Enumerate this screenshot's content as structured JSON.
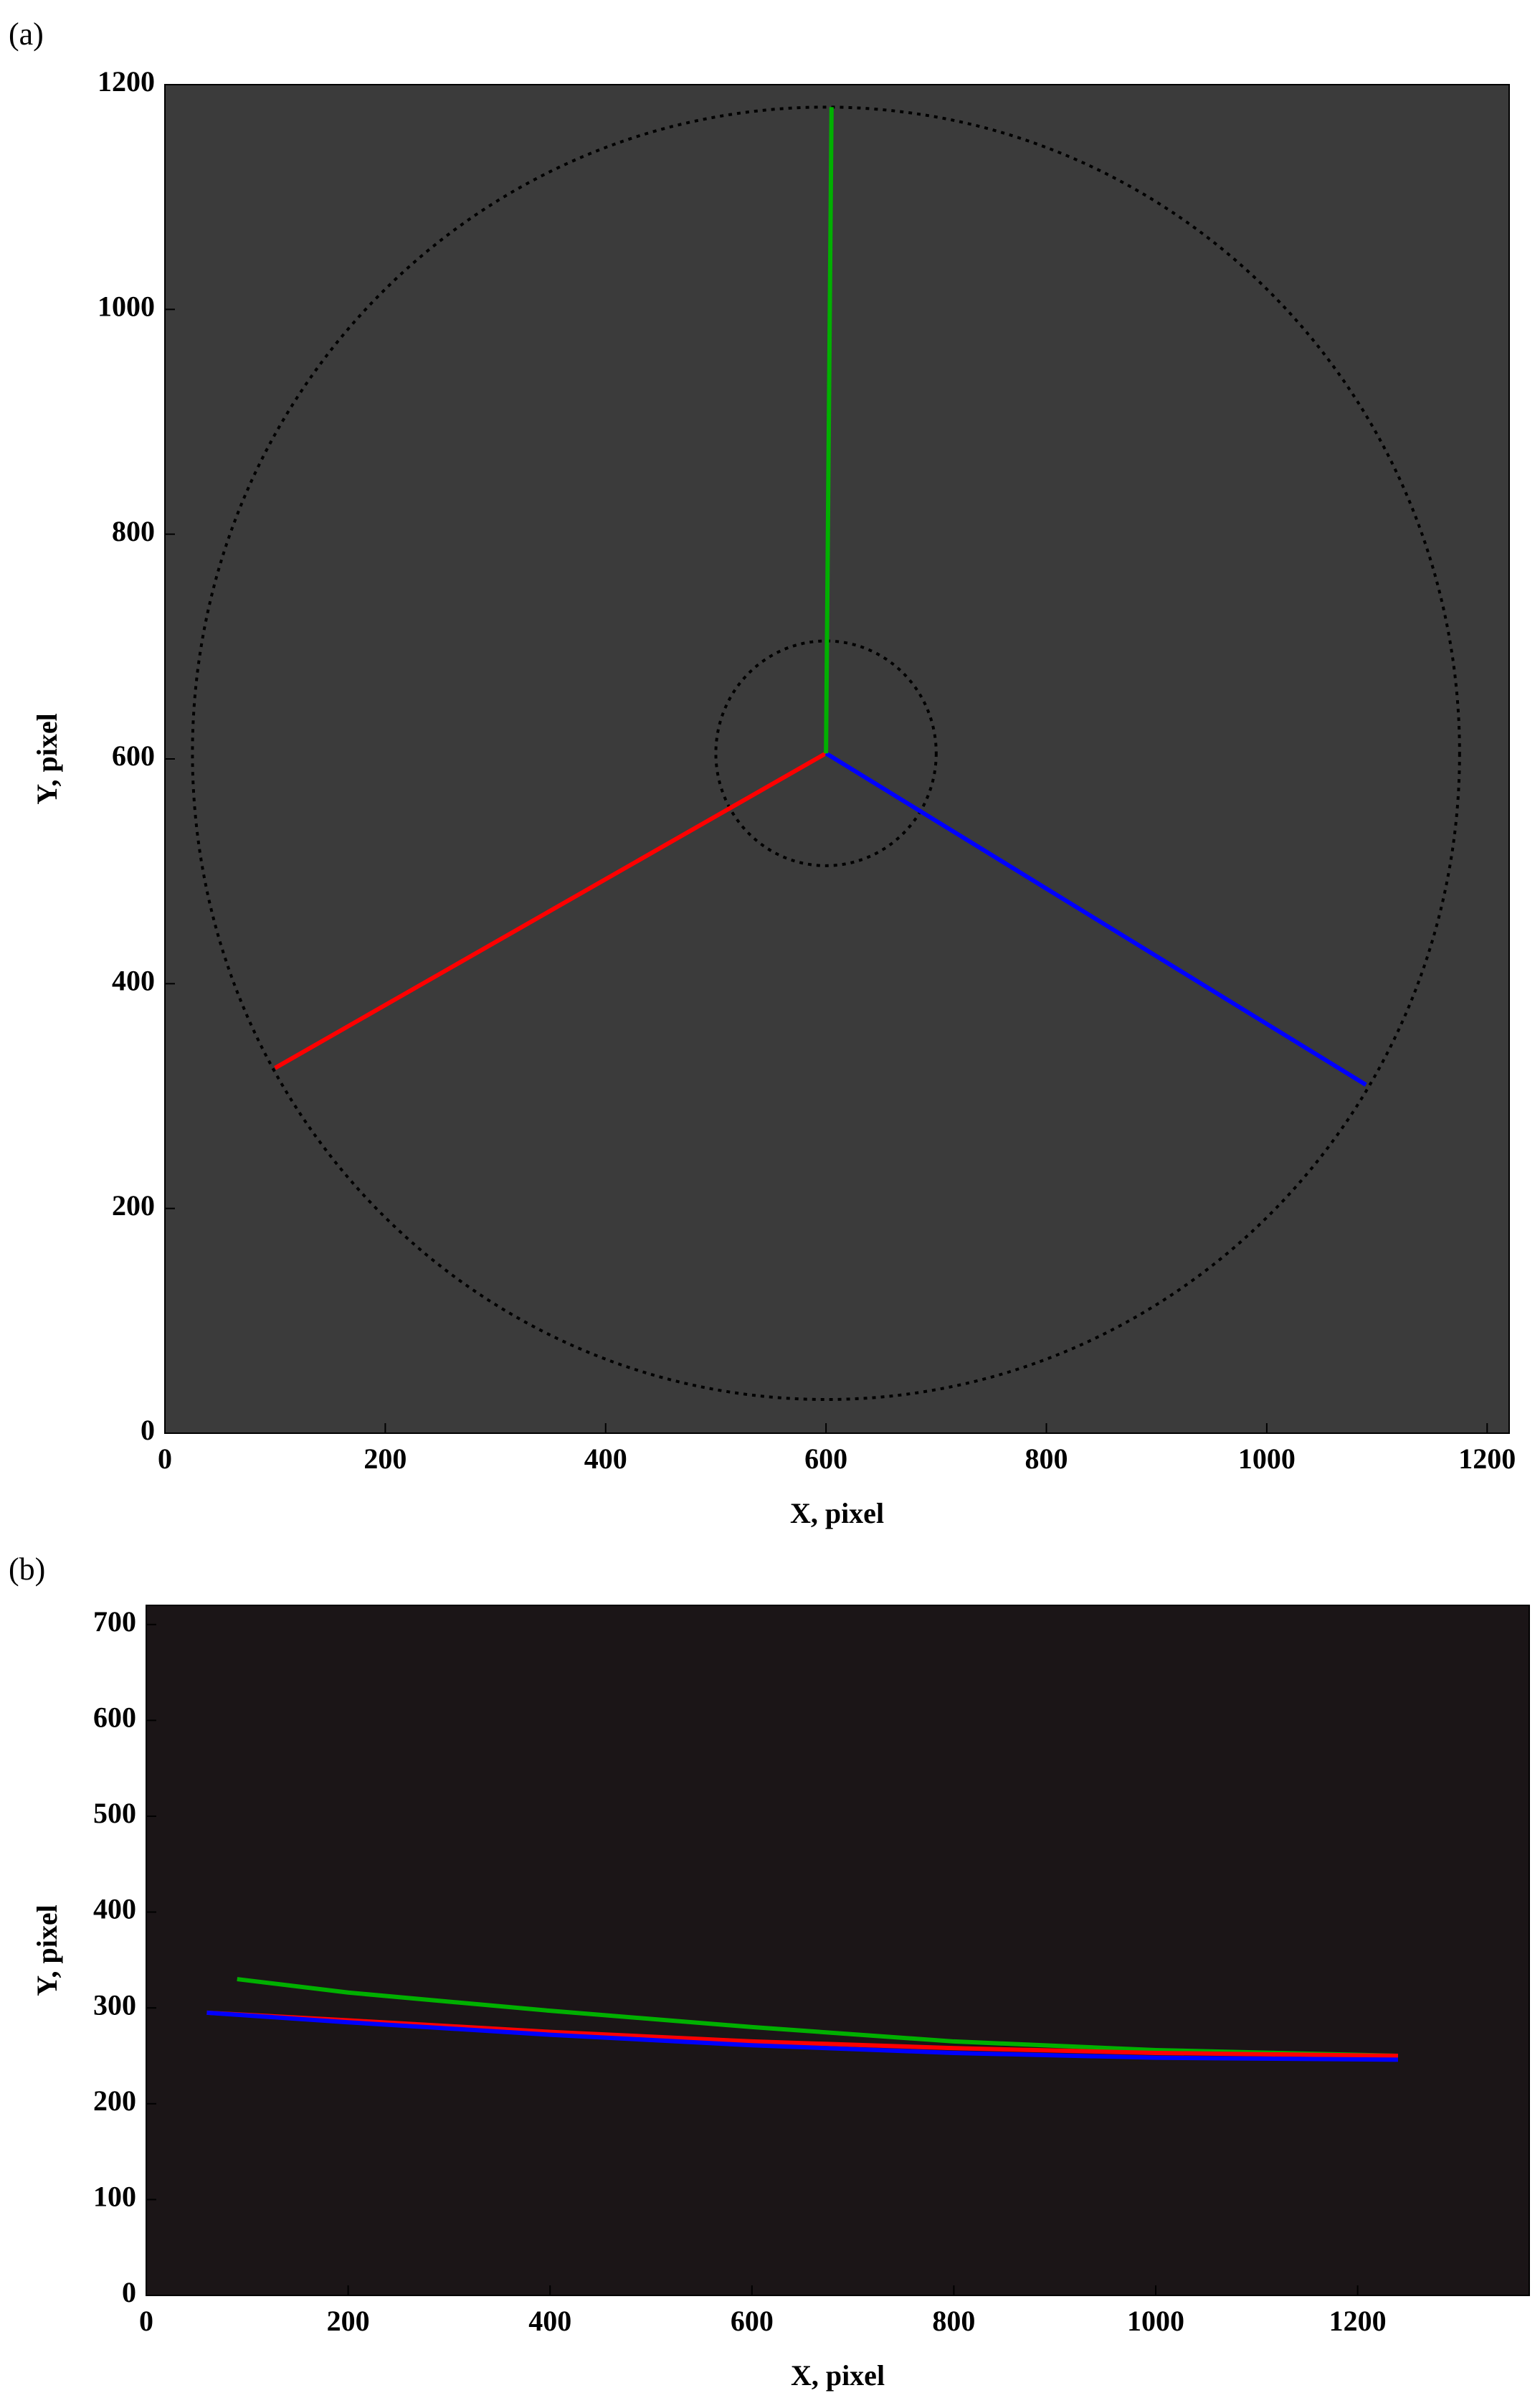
{
  "chart_data": [
    {
      "type": "line",
      "panel_label": "(a)",
      "xlabel": "X, pixel",
      "ylabel": "Y, pixel",
      "background": "#3b3b3b",
      "xlim": [
        0,
        1220
      ],
      "ylim": [
        0,
        1200
      ],
      "xticks": [
        0,
        200,
        400,
        600,
        800,
        1000,
        1200
      ],
      "yticks": [
        0,
        200,
        400,
        600,
        800,
        1000,
        1200
      ],
      "series": [
        {
          "color": "#ff0000",
          "x": [
            100,
            600
          ],
          "values": [
            325,
            605
          ]
        },
        {
          "color": "#0000ff",
          "x": [
            600,
            1090
          ],
          "values": [
            605,
            310
          ]
        },
        {
          "color": "#00b000",
          "x": [
            600,
            605
          ],
          "values": [
            605,
            1180
          ]
        }
      ],
      "circles": [
        {
          "center": [
            600,
            605
          ],
          "radius": 575
        },
        {
          "center": [
            600,
            605
          ],
          "radius": 100
        }
      ]
    },
    {
      "type": "line",
      "panel_label": "(b)",
      "xlabel": "X, pixel",
      "ylabel": "Y, pixel",
      "background": "#1b1517",
      "xlim": [
        0,
        1370
      ],
      "ylim": [
        0,
        720
      ],
      "xticks": [
        0,
        200,
        400,
        600,
        800,
        1000,
        1200
      ],
      "yticks": [
        0,
        100,
        200,
        300,
        400,
        500,
        600,
        700
      ],
      "series": [
        {
          "color": "#00b000",
          "x": [
            90,
            200,
            400,
            600,
            800,
            1000,
            1240
          ],
          "values": [
            330,
            316,
            297,
            280,
            265,
            256,
            250
          ]
        },
        {
          "color": "#ff0000",
          "x": [
            60,
            200,
            400,
            600,
            800,
            1000,
            1240
          ],
          "values": [
            295,
            287,
            275,
            265,
            258,
            253,
            250
          ]
        },
        {
          "color": "#0000ff",
          "x": [
            60,
            200,
            400,
            600,
            800,
            1000,
            1240
          ],
          "values": [
            295,
            285,
            272,
            261,
            253,
            248,
            246
          ]
        }
      ]
    }
  ]
}
